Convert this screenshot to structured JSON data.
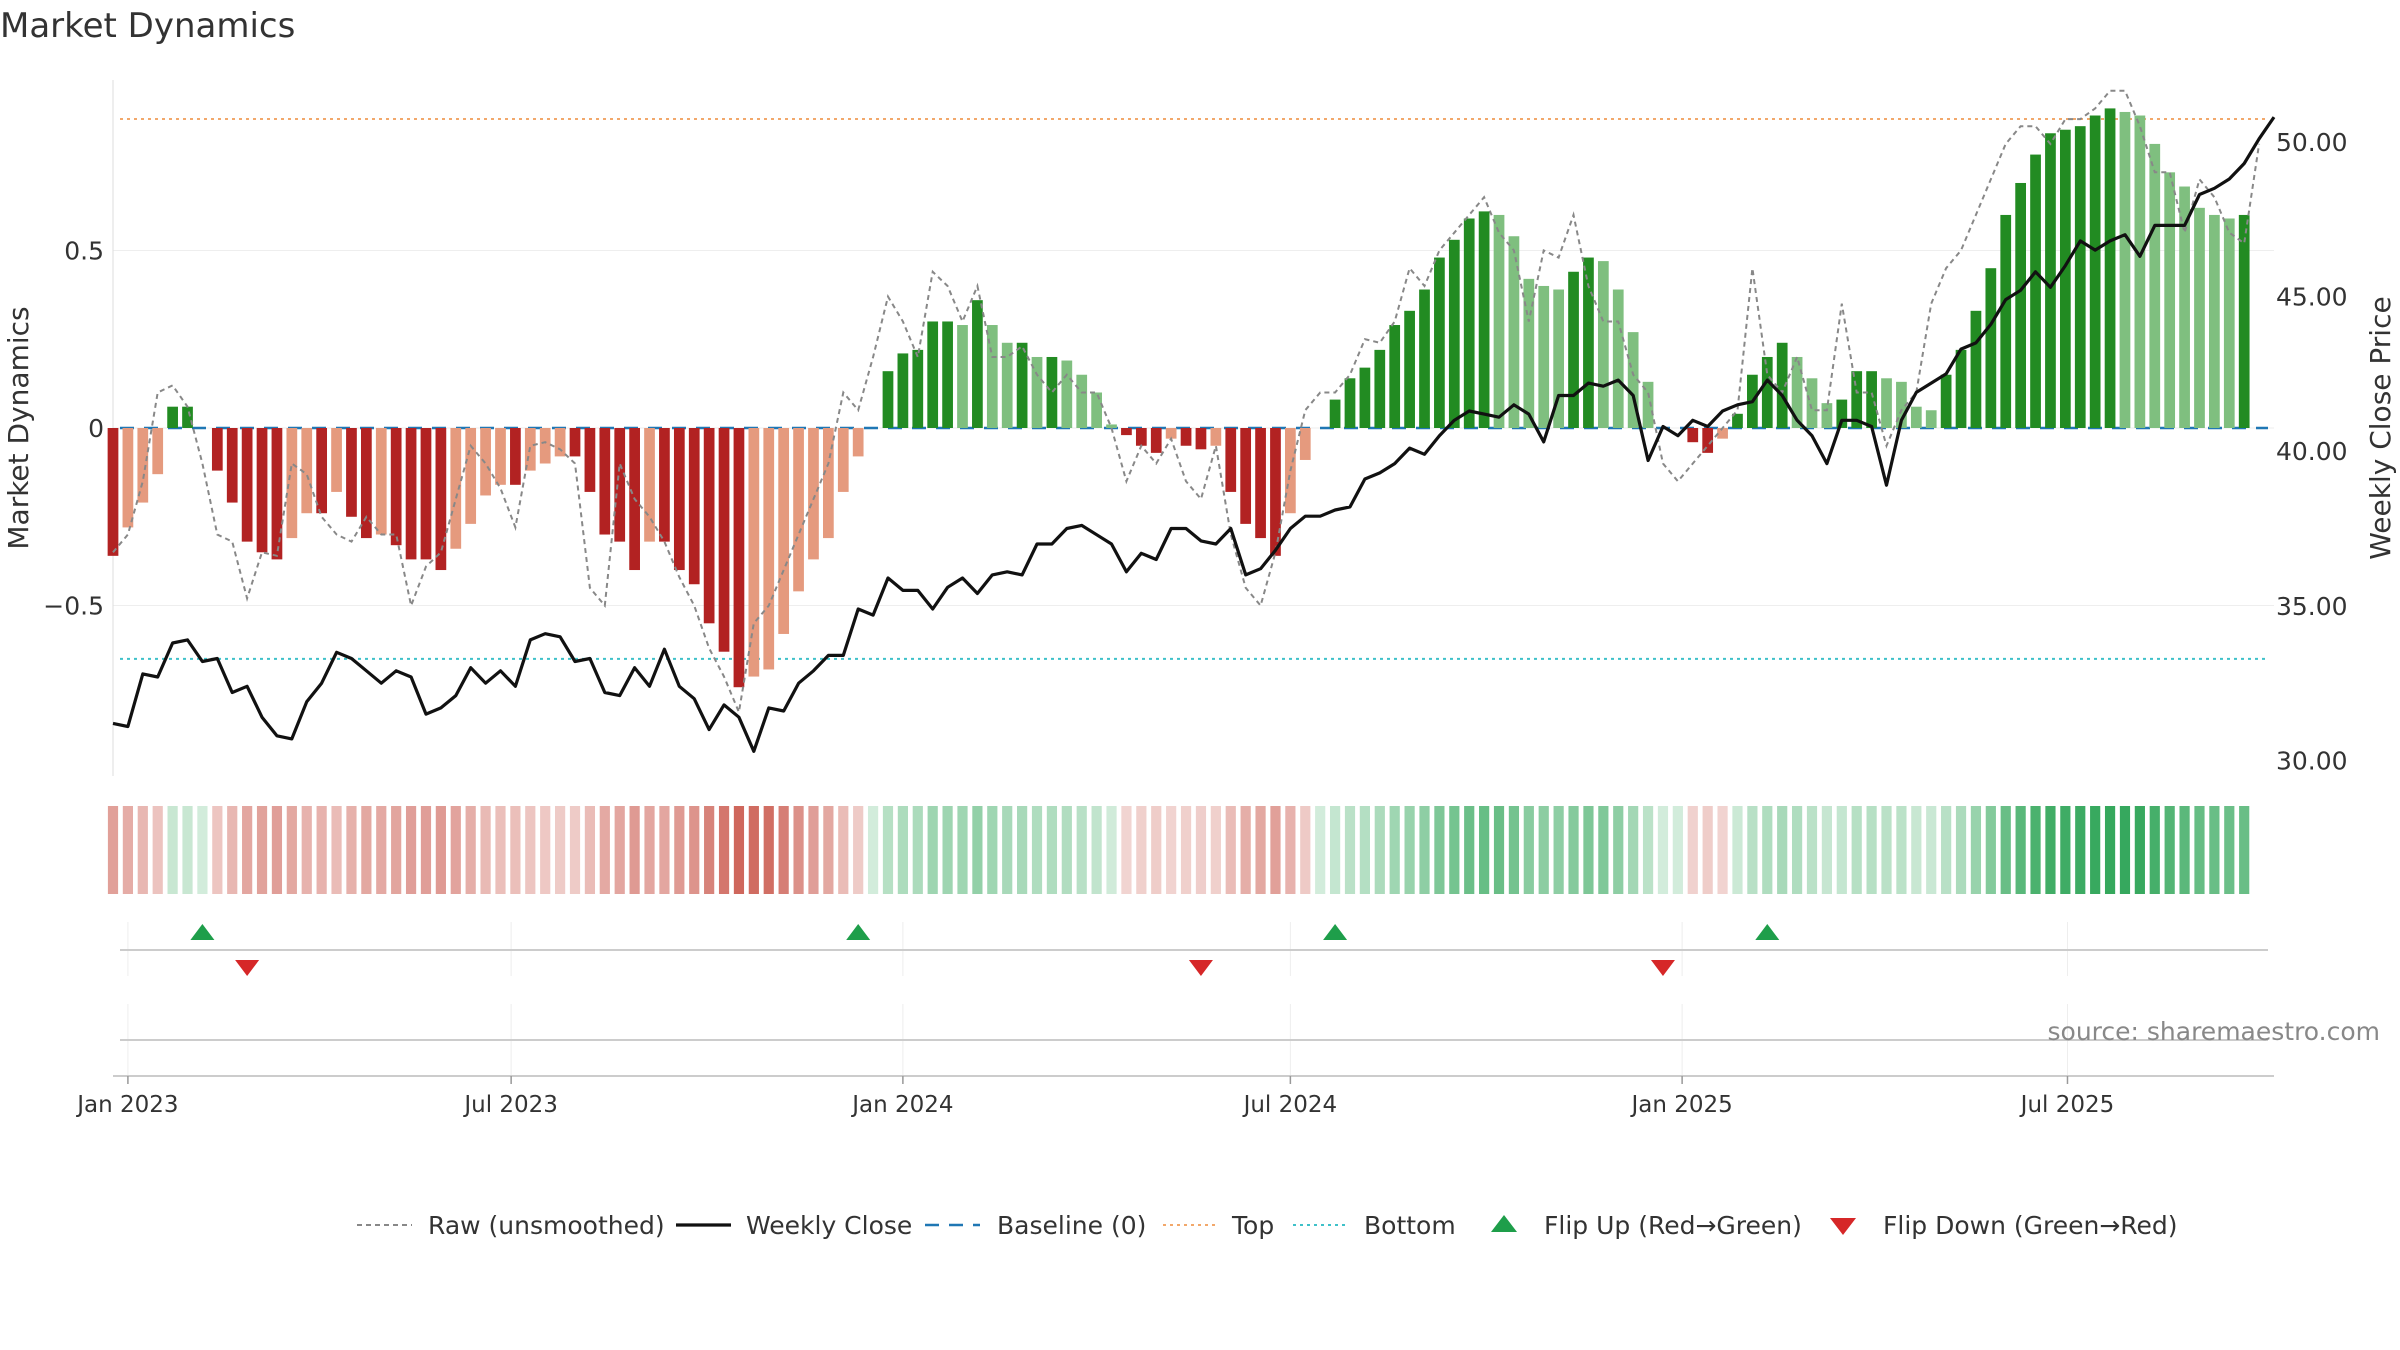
{
  "chart_data": {
    "type": "bar",
    "title": "Market Dynamics",
    "ylabel_left": "Market Dynamics",
    "ylabel_right": "Weekly Close Price",
    "source": "source: sharemaestro.com",
    "left_ticks": [
      {
        "value": 0.5,
        "label": "0.5"
      },
      {
        "value": 0,
        "label": "0"
      },
      {
        "value": -0.5,
        "label": "−0.5"
      }
    ],
    "right_ticks": [
      {
        "value": 50,
        "label": "50.00"
      },
      {
        "value": 45,
        "label": "45.00"
      },
      {
        "value": 40,
        "label": "40.00"
      },
      {
        "value": 35,
        "label": "35.00"
      },
      {
        "value": 30,
        "label": "30.00"
      }
    ],
    "ylim_left": [
      -0.98,
      0.98
    ],
    "ylim_right": [
      29.5,
      52
    ],
    "top_level": 0.87,
    "bottom_level": -0.65,
    "x_start": "2022-12-26",
    "x_end": "2025-10-06",
    "date_ticks": [
      {
        "date": "2023-01-02",
        "label": "Jan 2023"
      },
      {
        "date": "2023-07-01",
        "label": "Jul 2023"
      },
      {
        "date": "2024-01-01",
        "label": "Jan 2024"
      },
      {
        "date": "2024-07-01",
        "label": "Jul 2024"
      },
      {
        "date": "2025-01-01",
        "label": "Jan 2025"
      },
      {
        "date": "2025-07-01",
        "label": "Jul 2025"
      }
    ],
    "week_start": "2022-12-26",
    "dynamics": [
      -0.36,
      -0.28,
      -0.21,
      -0.13,
      0.06,
      0.06,
      0,
      -0.12,
      -0.21,
      -0.32,
      -0.35,
      -0.37,
      -0.31,
      -0.24,
      -0.24,
      -0.18,
      -0.25,
      -0.31,
      -0.3,
      -0.33,
      -0.37,
      -0.37,
      -0.4,
      -0.34,
      -0.27,
      -0.19,
      -0.16,
      -0.16,
      -0.12,
      -0.1,
      -0.08,
      -0.08,
      -0.18,
      -0.3,
      -0.32,
      -0.4,
      -0.32,
      -0.32,
      -0.4,
      -0.44,
      -0.55,
      -0.63,
      -0.73,
      -0.7,
      -0.68,
      -0.58,
      -0.46,
      -0.37,
      -0.31,
      -0.18,
      -0.08,
      0,
      0.16,
      0.21,
      0.22,
      0.3,
      0.3,
      0.29,
      0.36,
      0.29,
      0.24,
      0.24,
      0.2,
      0.2,
      0.19,
      0.15,
      0.1,
      0.01,
      -0.02,
      -0.05,
      -0.07,
      -0.03,
      -0.05,
      -0.06,
      -0.05,
      -0.18,
      -0.27,
      -0.31,
      -0.36,
      -0.24,
      -0.09,
      0,
      0.08,
      0.14,
      0.17,
      0.22,
      0.29,
      0.33,
      0.39,
      0.48,
      0.53,
      0.59,
      0.61,
      0.6,
      0.54,
      0.42,
      0.4,
      0.39,
      0.44,
      0.48,
      0.47,
      0.39,
      0.27,
      0.13,
      0,
      0,
      -0.04,
      -0.07,
      -0.03,
      0.04,
      0.15,
      0.2,
      0.24,
      0.2,
      0.14,
      0.07,
      0.08,
      0.16,
      0.16,
      0.14,
      0.13,
      0.06,
      0.05,
      0.15,
      0.22,
      0.33,
      0.45,
      0.6,
      0.69,
      0.77,
      0.83,
      0.84,
      0.85,
      0.88,
      0.9,
      0.89,
      0.88,
      0.8,
      0.72,
      0.68,
      0.62,
      0.6,
      0.59,
      0.6
    ],
    "raw": [
      -0.35,
      -0.3,
      -0.15,
      0.1,
      0.12,
      0.06,
      -0.1,
      -0.3,
      -0.32,
      -0.48,
      -0.35,
      -0.36,
      -0.1,
      -0.13,
      -0.25,
      -0.3,
      -0.32,
      -0.25,
      -0.3,
      -0.3,
      -0.5,
      -0.39,
      -0.35,
      -0.2,
      -0.05,
      -0.1,
      -0.17,
      -0.28,
      -0.05,
      -0.04,
      -0.06,
      -0.1,
      -0.45,
      -0.5,
      -0.1,
      -0.2,
      -0.25,
      -0.32,
      -0.42,
      -0.5,
      -0.62,
      -0.7,
      -0.8,
      -0.55,
      -0.5,
      -0.4,
      -0.3,
      -0.2,
      -0.1,
      0.1,
      0.05,
      0.2,
      0.37,
      0.3,
      0.2,
      0.44,
      0.4,
      0.3,
      0.4,
      0.2,
      0.2,
      0.23,
      0.15,
      0.1,
      0.15,
      0.1,
      0.1,
      0,
      -0.15,
      -0.05,
      -0.1,
      -0.03,
      -0.15,
      -0.2,
      -0.05,
      -0.3,
      -0.45,
      -0.5,
      -0.35,
      -0.12,
      0.05,
      0.1,
      0.1,
      0.15,
      0.25,
      0.24,
      0.3,
      0.45,
      0.4,
      0.5,
      0.55,
      0.6,
      0.65,
      0.55,
      0.5,
      0.3,
      0.5,
      0.48,
      0.6,
      0.4,
      0.3,
      0.3,
      0.15,
      0.1,
      -0.1,
      -0.15,
      -0.1,
      -0.05,
      0,
      0.05,
      0.45,
      0.15,
      0.1,
      0.2,
      0.05,
      0.05,
      0.35,
      0.1,
      0.1,
      -0.05,
      0.05,
      0.1,
      0.35,
      0.45,
      0.5,
      0.6,
      0.7,
      0.8,
      0.85,
      0.85,
      0.8,
      0.87,
      0.87,
      0.9,
      0.95,
      0.95,
      0.85,
      0.72,
      0.72,
      0.55,
      0.7,
      0.65,
      0.55,
      0.52,
      0.8
    ],
    "close": [
      31.2,
      31.1,
      32.8,
      32.7,
      33.8,
      33.9,
      33.2,
      33.3,
      32.2,
      32.4,
      31.4,
      30.8,
      30.7,
      31.9,
      32.5,
      33.5,
      33.3,
      32.9,
      32.5,
      32.9,
      32.7,
      31.5,
      31.7,
      32.1,
      33.0,
      32.5,
      32.9,
      32.4,
      33.9,
      34.1,
      34.0,
      33.2,
      33.3,
      32.2,
      32.1,
      33.0,
      32.4,
      33.6,
      32.4,
      32.0,
      31.0,
      31.8,
      31.4,
      30.3,
      31.7,
      31.6,
      32.5,
      32.9,
      33.4,
      33.4,
      34.9,
      34.7,
      35.9,
      35.5,
      35.5,
      34.9,
      35.6,
      35.9,
      35.4,
      36.0,
      36.1,
      36.0,
      37.0,
      37.0,
      37.5,
      37.6,
      37.3,
      37.0,
      36.1,
      36.7,
      36.5,
      37.5,
      37.5,
      37.1,
      37.0,
      37.5,
      36.0,
      36.2,
      36.8,
      37.5,
      37.9,
      37.9,
      38.1,
      38.2,
      39.1,
      39.3,
      39.6,
      40.1,
      39.9,
      40.5,
      41.0,
      41.3,
      41.2,
      41.1,
      41.5,
      41.2,
      40.3,
      41.8,
      41.8,
      42.2,
      42.1,
      42.3,
      41.8,
      39.7,
      40.8,
      40.5,
      41.0,
      40.8,
      41.3,
      41.5,
      41.6,
      42.3,
      41.8,
      41.0,
      40.5,
      39.6,
      41.0,
      41.0,
      40.8,
      38.9,
      41.0,
      41.9,
      42.2,
      42.5,
      43.3,
      43.5,
      44.1,
      44.9,
      45.2,
      45.8,
      45.3,
      46.0,
      46.8,
      46.5,
      46.8,
      47.0,
      46.3,
      47.3,
      47.3,
      47.3,
      48.3,
      48.5,
      48.8,
      49.3,
      50.1,
      50.8
    ],
    "flips_up": [
      "2023-02-06",
      "2023-12-11",
      "2024-07-22",
      "2025-02-10"
    ],
    "flips_down": [
      "2023-02-27",
      "2024-05-20",
      "2024-12-23"
    ],
    "legend": [
      {
        "key": "raw",
        "label": "Raw (unsmoothed)"
      },
      {
        "key": "close",
        "label": "Weekly Close"
      },
      {
        "key": "baseline",
        "label": "Baseline (0)"
      },
      {
        "key": "top",
        "label": "Top"
      },
      {
        "key": "bottom",
        "label": "Bottom"
      },
      {
        "key": "flip_up",
        "label": "Flip Up (Red→Green)"
      },
      {
        "key": "flip_down",
        "label": "Flip Down (Green→Red)"
      }
    ],
    "colors": {
      "pos_strong": "#228B22",
      "pos_weak": "#7FBF7F",
      "neg_strong": "#B22222",
      "neg_weak": "#E59A7E",
      "raw": "#888888",
      "close": "#111111",
      "baseline": "#1F77B4",
      "top": "#F2A86B",
      "bottom": "#3FC1C9",
      "flip_up": "#1E9E4A",
      "flip_down": "#D62728"
    }
  }
}
